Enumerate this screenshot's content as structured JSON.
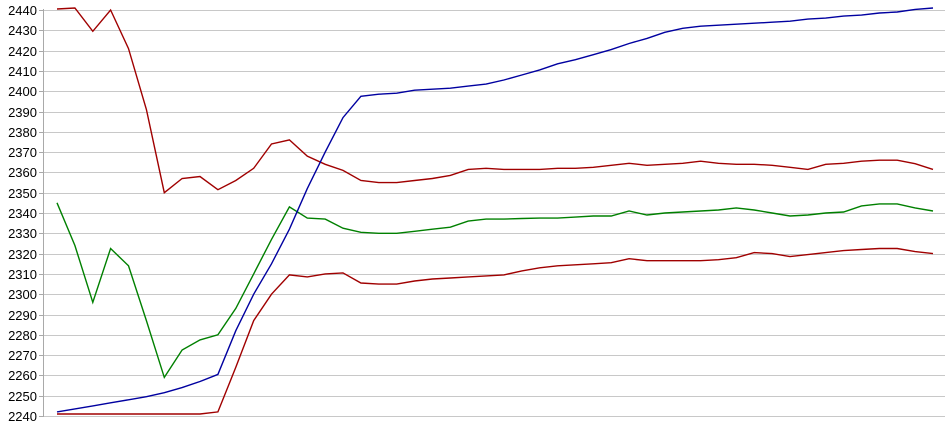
{
  "chart_data": {
    "type": "line",
    "title": "",
    "xlabel": "",
    "ylabel": "",
    "grid": true,
    "legend": "none",
    "background": "#ffffff",
    "grid_color": "#c8c8c8",
    "axis_color": "#a9a9a9",
    "label_color": "#000000",
    "ylim": [
      2240,
      2440
    ],
    "y_ticks": [
      2440,
      2430,
      2420,
      2410,
      2400,
      2390,
      2380,
      2370,
      2360,
      2350,
      2340,
      2330,
      2320,
      2310,
      2300,
      2290,
      2280,
      2270,
      2260,
      2250,
      2240
    ],
    "x_tick_labels": [],
    "point_count": 50,
    "series": [
      {
        "name": "upper-dark-red",
        "color": "#a00000",
        "values": [
          2440.5,
          2441,
          2429.5,
          2440,
          2421,
          2391,
          2350,
          2357,
          2358,
          2351.5,
          2356,
          2362,
          2374,
          2376,
          2368,
          2364,
          2361,
          2356,
          2355,
          2355,
          2356,
          2357,
          2358.5,
          2361.5,
          2362,
          2361.5,
          2361.5,
          2361.5,
          2362,
          2362,
          2362.5,
          2363.5,
          2364.5,
          2363.5,
          2364,
          2364.5,
          2365.5,
          2364.5,
          2364,
          2364,
          2363.5,
          2362.5,
          2361.5,
          2364,
          2364.5,
          2365.5,
          2366,
          2366,
          2364.3,
          2361.5
        ]
      },
      {
        "name": "lower-dark-red",
        "color": "#a00000",
        "values": [
          2241,
          2241,
          2241,
          2241,
          2241,
          2241,
          2241,
          2241,
          2241,
          2242,
          2264,
          2287,
          2300,
          2309.5,
          2308.5,
          2310,
          2310.5,
          2305.5,
          2305,
          2305,
          2306.5,
          2307.5,
          2308,
          2308.5,
          2309,
          2309.5,
          2311.5,
          2313,
          2314,
          2314.5,
          2315,
          2315.5,
          2317.5,
          2316.5,
          2316.5,
          2316.5,
          2316.5,
          2317,
          2318,
          2320.5,
          2320,
          2318.5,
          2319.5,
          2320.5,
          2321.5,
          2322,
          2322.5,
          2322.5,
          2321,
          2320
        ]
      },
      {
        "name": "green",
        "color": "#008000",
        "values": [
          2345,
          2324,
          2296,
          2322.5,
          2314,
          2287,
          2259,
          2272.5,
          2277.5,
          2280,
          2293,
          2310,
          2327,
          2343,
          2337.5,
          2337,
          2332.5,
          2330.5,
          2330,
          2330,
          2331,
          2332,
          2333,
          2336,
          2337,
          2337,
          2337.3,
          2337.5,
          2337.5,
          2338,
          2338.5,
          2338.5,
          2341,
          2339,
          2340,
          2340.5,
          2341,
          2341.5,
          2342.5,
          2341.5,
          2340,
          2338.5,
          2339,
          2340,
          2340.5,
          2343.5,
          2344.5,
          2344.5,
          2342.5,
          2341
        ]
      },
      {
        "name": "blue",
        "color": "#0000a0",
        "values": [
          2242,
          2243.5,
          2245,
          2246.5,
          2248,
          2249.5,
          2251.5,
          2254,
          2257,
          2260.5,
          2282,
          2300,
          2315,
          2332,
          2352,
          2370,
          2387,
          2397.5,
          2398.5,
          2399,
          2400.5,
          2401,
          2401.5,
          2402.5,
          2403.5,
          2405.5,
          2408,
          2410.5,
          2413.5,
          2415.5,
          2418,
          2420.5,
          2423.5,
          2426,
          2429,
          2431,
          2432,
          2432.5,
          2433,
          2433.5,
          2434,
          2434.5,
          2435.5,
          2436,
          2437,
          2437.5,
          2438.5,
          2439,
          2440.3,
          2441
        ]
      }
    ]
  }
}
